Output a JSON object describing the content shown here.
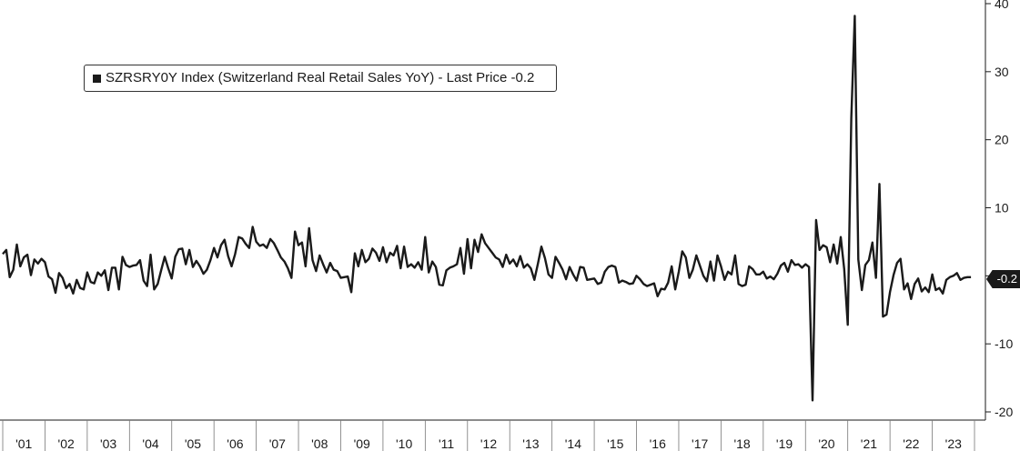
{
  "chart_data": {
    "type": "line",
    "legend": {
      "text": "SZRSRY0Y Index (Switzerland Real Retail Sales YoY) - Last Price -0.2",
      "placement": "top-left"
    },
    "series": [
      {
        "name": "SZRSRY0Y Index (Switzerland Real Retail Sales YoY)",
        "color": "#1a1a1a",
        "x": [
          "2001-01",
          "2001-02",
          "2001-03",
          "2001-04",
          "2001-05",
          "2001-06",
          "2001-07",
          "2001-08",
          "2001-09",
          "2001-10",
          "2001-11",
          "2001-12",
          "2002-01",
          "2002-02",
          "2002-03",
          "2002-04",
          "2002-05",
          "2002-06",
          "2002-07",
          "2002-08",
          "2002-09",
          "2002-10",
          "2002-11",
          "2002-12",
          "2003-01",
          "2003-02",
          "2003-03",
          "2003-04",
          "2003-05",
          "2003-06",
          "2003-07",
          "2003-08",
          "2003-09",
          "2003-10",
          "2003-11",
          "2003-12",
          "2004-01",
          "2004-02",
          "2004-03",
          "2004-04",
          "2004-05",
          "2004-06",
          "2004-07",
          "2004-08",
          "2004-09",
          "2004-10",
          "2004-11",
          "2004-12",
          "2005-01",
          "2005-02",
          "2005-03",
          "2005-04",
          "2005-05",
          "2005-06",
          "2005-07",
          "2005-08",
          "2005-09",
          "2005-10",
          "2005-11",
          "2005-12",
          "2006-01",
          "2006-02",
          "2006-03",
          "2006-04",
          "2006-05",
          "2006-06",
          "2006-07",
          "2006-08",
          "2006-09",
          "2006-10",
          "2006-11",
          "2006-12",
          "2007-01",
          "2007-02",
          "2007-03",
          "2007-04",
          "2007-05",
          "2007-06",
          "2007-07",
          "2007-08",
          "2007-09",
          "2007-10",
          "2007-11",
          "2007-12",
          "2008-01",
          "2008-02",
          "2008-03",
          "2008-04",
          "2008-05",
          "2008-06",
          "2008-07",
          "2008-08",
          "2008-09",
          "2008-10",
          "2008-11",
          "2008-12",
          "2009-01",
          "2009-02",
          "2009-03",
          "2009-04",
          "2009-05",
          "2009-06",
          "2009-07",
          "2009-08",
          "2009-09",
          "2009-10",
          "2009-11",
          "2009-12",
          "2010-01",
          "2010-02",
          "2010-03",
          "2010-04",
          "2010-05",
          "2010-06",
          "2010-07",
          "2010-08",
          "2010-09",
          "2010-10",
          "2010-11",
          "2010-12",
          "2011-01",
          "2011-02",
          "2011-03",
          "2011-04",
          "2011-05",
          "2011-06",
          "2011-07",
          "2011-08",
          "2011-09",
          "2011-10",
          "2011-11",
          "2011-12",
          "2012-01",
          "2012-02",
          "2012-03",
          "2012-04",
          "2012-05",
          "2012-06",
          "2012-07",
          "2012-08",
          "2012-09",
          "2012-10",
          "2012-11",
          "2012-12",
          "2013-01",
          "2013-02",
          "2013-03",
          "2013-04",
          "2013-05",
          "2013-06",
          "2013-07",
          "2013-08",
          "2013-09",
          "2013-10",
          "2013-11",
          "2013-12",
          "2014-01",
          "2014-02",
          "2014-03",
          "2014-04",
          "2014-05",
          "2014-06",
          "2014-07",
          "2014-08",
          "2014-09",
          "2014-10",
          "2014-11",
          "2014-12",
          "2015-01",
          "2015-02",
          "2015-03",
          "2015-04",
          "2015-05",
          "2015-06",
          "2015-07",
          "2015-08",
          "2015-09",
          "2015-10",
          "2015-11",
          "2015-12",
          "2016-01",
          "2016-02",
          "2016-03",
          "2016-04",
          "2016-05",
          "2016-06",
          "2016-07",
          "2016-08",
          "2016-09",
          "2016-10",
          "2016-11",
          "2016-12",
          "2017-01",
          "2017-02",
          "2017-03",
          "2017-04",
          "2017-05",
          "2017-06",
          "2017-07",
          "2017-08",
          "2017-09",
          "2017-10",
          "2017-11",
          "2017-12",
          "2018-01",
          "2018-02",
          "2018-03",
          "2018-04",
          "2018-05",
          "2018-06",
          "2018-07",
          "2018-08",
          "2018-09",
          "2018-10",
          "2018-11",
          "2018-12",
          "2019-01",
          "2019-02",
          "2019-03",
          "2019-04",
          "2019-05",
          "2019-06",
          "2019-07",
          "2019-08",
          "2019-09",
          "2019-10",
          "2019-11",
          "2019-12",
          "2020-01",
          "2020-02",
          "2020-03",
          "2020-04",
          "2020-05",
          "2020-06",
          "2020-07",
          "2020-08",
          "2020-09",
          "2020-10",
          "2020-11",
          "2020-12",
          "2021-01",
          "2021-02",
          "2021-03",
          "2021-04",
          "2021-05",
          "2021-06",
          "2021-07",
          "2021-08",
          "2021-09",
          "2021-10",
          "2021-11",
          "2021-12",
          "2022-01",
          "2022-02",
          "2022-03",
          "2022-04",
          "2022-05",
          "2022-06",
          "2022-07",
          "2022-08",
          "2022-09",
          "2022-10",
          "2022-11",
          "2022-12",
          "2023-01",
          "2023-02",
          "2023-03",
          "2023-04",
          "2023-05",
          "2023-06",
          "2023-07",
          "2023-08",
          "2023-09",
          "2023-10",
          "2023-11",
          "2023-12"
        ],
        "values": [
          3.2,
          3.8,
          -0.2,
          0.9,
          4.6,
          1.4,
          2.7,
          3.1,
          0.1,
          2.4,
          1.8,
          2.5,
          2.0,
          -0.1,
          -0.5,
          -2.5,
          0.4,
          -0.3,
          -1.8,
          -1.2,
          -2.6,
          -0.6,
          -1.8,
          -2.0,
          0.5,
          -0.9,
          -1.1,
          0.5,
          0.0,
          0.8,
          -2.1,
          1.2,
          1.2,
          -2.0,
          2.8,
          1.6,
          1.3,
          1.5,
          1.6,
          2.3,
          -0.7,
          -1.5,
          3.1,
          -2.0,
          -1.2,
          0.8,
          2.8,
          1.1,
          -0.4,
          2.8,
          3.9,
          4.0,
          1.7,
          3.8,
          1.3,
          2.2,
          1.4,
          0.3,
          0.9,
          2.3,
          4.1,
          2.7,
          4.5,
          5.3,
          2.9,
          1.4,
          3.2,
          5.7,
          5.5,
          4.7,
          4.1,
          7.2,
          5.0,
          4.4,
          4.6,
          4.1,
          5.4,
          4.8,
          3.8,
          2.7,
          2.1,
          1.1,
          -0.3,
          6.5,
          4.5,
          4.9,
          1.4,
          7.0,
          2.3,
          0.7,
          3.0,
          1.7,
          0.5,
          1.9,
          0.9,
          0.7,
          -0.3,
          -0.2,
          -0.1,
          -2.4,
          3.3,
          1.4,
          3.8,
          2.0,
          2.5,
          4.0,
          3.4,
          2.2,
          4.2,
          2.0,
          3.4,
          3.0,
          4.4,
          1.1,
          4.3,
          1.3,
          1.7,
          1.2,
          2.0,
          0.9,
          5.7,
          0.5,
          2.1,
          1.3,
          -1.3,
          -1.4,
          0.8,
          1.2,
          1.4,
          1.7,
          4.1,
          0.3,
          5.4,
          1.1,
          5.3,
          3.5,
          6.1,
          4.8,
          4.1,
          3.4,
          2.7,
          2.4,
          1.3,
          3.1,
          1.8,
          2.4,
          1.4,
          2.9,
          1.2,
          1.7,
          1.1,
          -0.6,
          1.8,
          4.3,
          2.6,
          0.2,
          -0.3,
          2.8,
          1.9,
          0.9,
          -0.5,
          1.3,
          0.2,
          -0.7,
          1.3,
          1.2,
          -0.6,
          -0.5,
          -0.4,
          -1.2,
          -1.0,
          0.6,
          1.3,
          1.5,
          1.3,
          -1.0,
          -0.7,
          -0.9,
          -1.2,
          -1.1,
          0.0,
          -0.5,
          -1.2,
          -1.5,
          -1.3,
          -1.1,
          -3.0,
          -1.9,
          -2.0,
          -1.0,
          1.4,
          -2.0,
          0.6,
          3.6,
          2.7,
          -0.3,
          0.9,
          3.0,
          1.5,
          0.0,
          -0.8,
          2.1,
          -0.7,
          3.0,
          1.4,
          -0.6,
          0.6,
          0.2,
          3.0,
          -1.2,
          -1.5,
          -1.3,
          1.4,
          1.0,
          0.2,
          0.2,
          0.6,
          -0.4,
          -0.1,
          -0.5,
          0.3,
          1.5,
          1.9,
          0.6,
          2.3,
          1.6,
          1.7,
          1.2,
          1.7,
          1.3,
          -18.3,
          8.2,
          3.8,
          4.5,
          4.2,
          2.0,
          4.6,
          1.8,
          5.7,
          1.0,
          -7.2,
          23.2,
          38.2,
          2.4,
          -2.1,
          1.6,
          2.3,
          4.9,
          -0.3,
          13.5,
          -6.0,
          -5.7,
          -2.4,
          0.1,
          1.9,
          2.5,
          -2.0,
          -1.1,
          -3.4,
          -1.2,
          -0.4,
          -2.3,
          -1.7,
          -2.4,
          0.2,
          -2.1,
          -1.8,
          -2.6,
          -0.6,
          -0.2,
          0.0,
          0.4,
          -0.6,
          -0.3,
          -0.2,
          -0.2
        ]
      }
    ],
    "last_value_label": "-0.2",
    "ylim": [
      -20,
      40
    ],
    "yticks": [
      -20,
      -10,
      0,
      10,
      20,
      30,
      40
    ],
    "ytick_labels": [
      "-20",
      "-10",
      "0",
      "10",
      "20",
      "30",
      "40"
    ],
    "y_axis_side": "right",
    "xtick_labels": [
      "'01",
      "'02",
      "'03",
      "'04",
      "'05",
      "'06",
      "'07",
      "'08",
      "'09",
      "'10",
      "'11",
      "'12",
      "'13",
      "'14",
      "'15",
      "'16",
      "'17",
      "'18",
      "'19",
      "'20",
      "'21",
      "'22",
      "'23"
    ],
    "grid": false
  }
}
